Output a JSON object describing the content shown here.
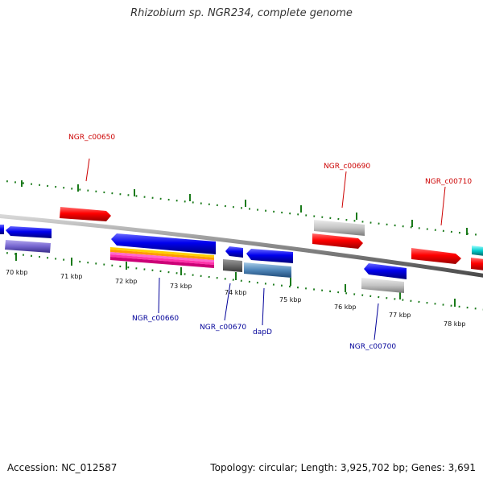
{
  "title": "Rhizobium sp. NGR234, complete genome",
  "footer": {
    "accession": "Accession: NC_012587",
    "stats": "Topology: circular; Length: 3,925,702 bp; Genes: 3,691"
  },
  "colors": {
    "plus_label": "#cc0000",
    "minus_label": "#000099",
    "tick": "#1a7a1a",
    "backbone": "#888888"
  },
  "ticks": [
    "70 kbp",
    "71 kbp",
    "72 kbp",
    "73 kbp",
    "74 kbp",
    "75 kbp",
    "76 kbp",
    "77 kbp",
    "78 kbp"
  ],
  "gene_labels": [
    {
      "text": "NGR_c00650",
      "strand": "plus"
    },
    {
      "text": "NGR_c00690",
      "strand": "plus"
    },
    {
      "text": "NGR_c00710",
      "strand": "plus"
    },
    {
      "text": "NGR_c00660",
      "strand": "minus"
    },
    {
      "text": "NGR_c00670",
      "strand": "minus"
    },
    {
      "text": "dapD",
      "strand": "minus"
    },
    {
      "text": "NGR_c00700",
      "strand": "minus"
    }
  ]
}
